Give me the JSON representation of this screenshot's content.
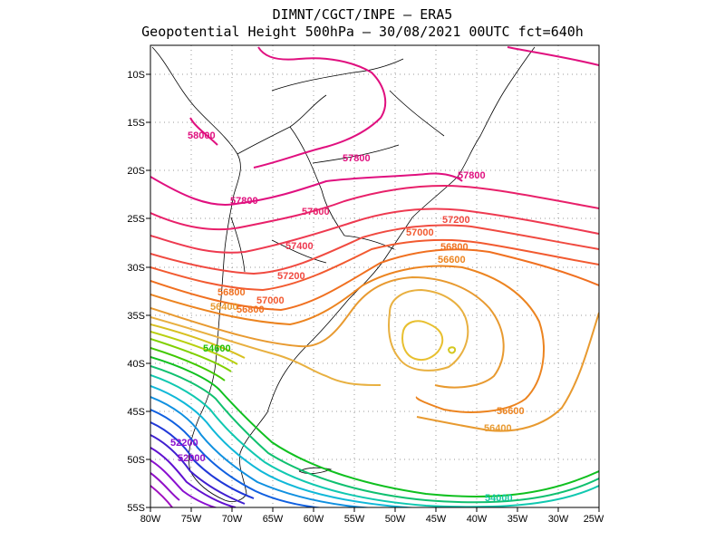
{
  "header": {
    "line1": "DIMNT/CGCT/INPE –  ERA5",
    "line2": "Geopotential Height 500hPa –  30/08/2021 00UTC fct=640h"
  },
  "map": {
    "variable": "Geopotential Height 500hPa",
    "lon_range": [
      -80,
      -25
    ],
    "lat_range": [
      -55,
      -7
    ],
    "lon_ticks": [
      "80W",
      "75W",
      "70W",
      "65W",
      "60W",
      "55W",
      "50W",
      "45W",
      "40W",
      "35W",
      "30W",
      "25W"
    ],
    "lat_ticks": [
      "10S",
      "15S",
      "20S",
      "25S",
      "30S",
      "35S",
      "40S",
      "45S",
      "50S",
      "55S"
    ],
    "grid": "dotted"
  },
  "contour_labels": [
    {
      "text": "58000",
      "color": "#e0107f"
    },
    {
      "text": "57800",
      "color": "#e0107f"
    },
    {
      "text": "57800",
      "color": "#e0107f"
    },
    {
      "text": "57800",
      "color": "#e0107f"
    },
    {
      "text": "57600",
      "color": "#e8206a"
    },
    {
      "text": "57400",
      "color": "#ee3a50"
    },
    {
      "text": "57200",
      "color": "#f04a40"
    },
    {
      "text": "57200",
      "color": "#f04a40"
    },
    {
      "text": "57000",
      "color": "#f25a30"
    },
    {
      "text": "57000",
      "color": "#f25a30"
    },
    {
      "text": "56800",
      "color": "#f07020"
    },
    {
      "text": "56800",
      "color": "#f07020"
    },
    {
      "text": "56800",
      "color": "#f07020"
    },
    {
      "text": "56600",
      "color": "#ec8420"
    },
    {
      "text": "56600",
      "color": "#ec8420"
    },
    {
      "text": "56400",
      "color": "#e89a30"
    },
    {
      "text": "56400",
      "color": "#e89a30"
    },
    {
      "text": "54600",
      "color": "#20c000"
    },
    {
      "text": "54000",
      "color": "#10c8a0"
    },
    {
      "text": "52200",
      "color": "#8a10d0"
    },
    {
      "text": "52000",
      "color": "#9010c8"
    }
  ]
}
